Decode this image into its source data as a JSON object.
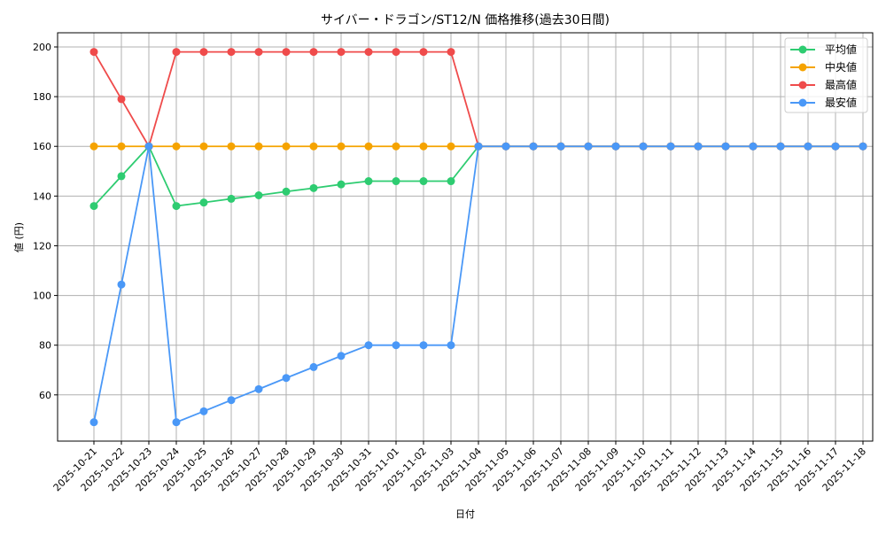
{
  "chart_data": {
    "type": "line",
    "title": "サイバー・ドラゴン/ST12/N 価格推移(過去30日間)",
    "xlabel": "日付",
    "ylabel": "値 (円)",
    "ylim": [
      41.4,
      205.7
    ],
    "yticks": [
      60,
      80,
      100,
      120,
      140,
      160,
      180,
      200
    ],
    "grid": true,
    "legend_position": "upper right",
    "x": [
      "2025-10-21",
      "2025-10-22",
      "2025-10-23",
      "2025-10-24",
      "2025-10-25",
      "2025-10-26",
      "2025-10-27",
      "2025-10-28",
      "2025-10-29",
      "2025-10-30",
      "2025-10-31",
      "2025-11-01",
      "2025-11-02",
      "2025-11-03",
      "2025-11-04",
      "2025-11-05",
      "2025-11-06",
      "2025-11-07",
      "2025-11-08",
      "2025-11-09",
      "2025-11-10",
      "2025-11-11",
      "2025-11-12",
      "2025-11-13",
      "2025-11-14",
      "2025-11-15",
      "2025-11-16",
      "2025-11-17",
      "2025-11-18"
    ],
    "series": [
      {
        "name": "平均値",
        "color": "#2ecc71",
        "values": [
          136,
          148,
          160,
          136,
          137.4,
          138.9,
          140.3,
          141.8,
          143.2,
          144.7,
          146,
          146,
          146,
          146,
          160,
          160,
          160,
          160,
          160,
          160,
          160,
          160,
          160,
          160,
          160,
          160,
          160,
          160,
          160
        ]
      },
      {
        "name": "中央値",
        "color": "#f5a300",
        "values": [
          160,
          160,
          160,
          160,
          160,
          160,
          160,
          160,
          160,
          160,
          160,
          160,
          160,
          160,
          160,
          160,
          160,
          160,
          160,
          160,
          160,
          160,
          160,
          160,
          160,
          160,
          160,
          160,
          160
        ]
      },
      {
        "name": "最高値",
        "color": "#ef4b4b",
        "values": [
          198,
          179,
          160,
          198,
          198,
          198,
          198,
          198,
          198,
          198,
          198,
          198,
          198,
          198,
          160,
          160,
          160,
          160,
          160,
          160,
          160,
          160,
          160,
          160,
          160,
          160,
          160,
          160,
          160
        ]
      },
      {
        "name": "最安値",
        "color": "#4a98f7",
        "values": [
          49,
          104.4,
          160,
          49,
          53.4,
          57.9,
          62.3,
          66.8,
          71.2,
          75.7,
          80,
          80,
          80,
          80,
          160,
          160,
          160,
          160,
          160,
          160,
          160,
          160,
          160,
          160,
          160,
          160,
          160,
          160,
          160
        ]
      }
    ]
  }
}
